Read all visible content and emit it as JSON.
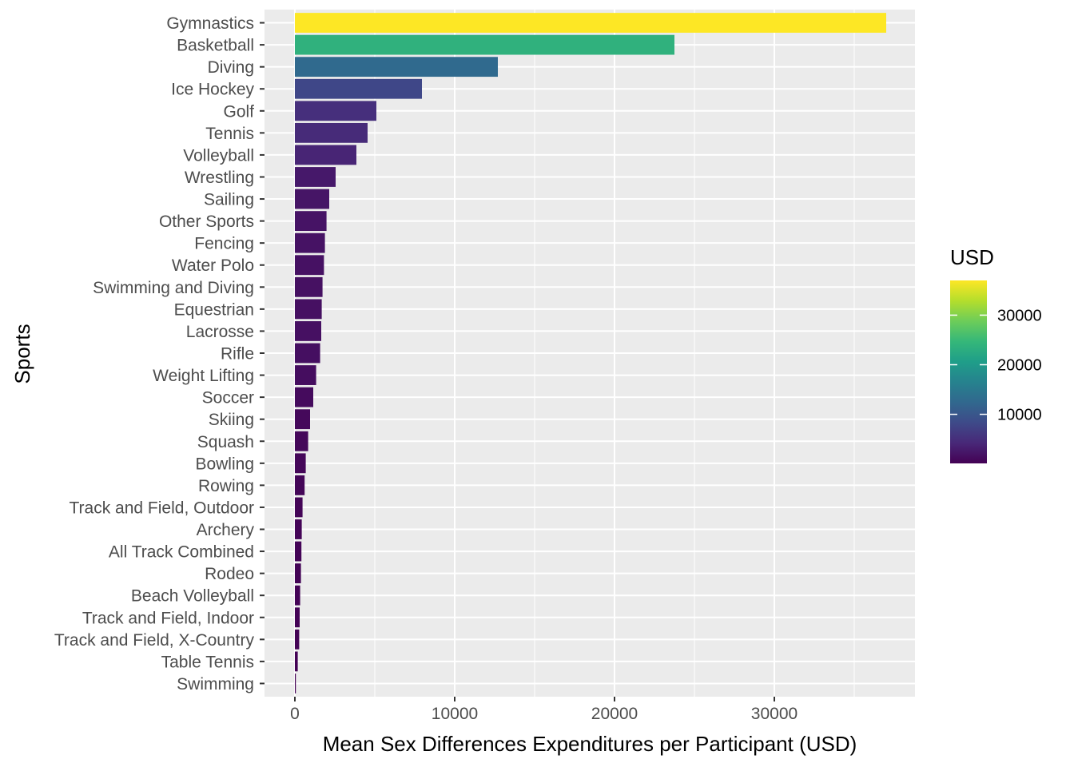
{
  "chart_data": {
    "type": "bar",
    "orientation": "horizontal",
    "xlabel": "Mean Sex Differences Expenditures per Participant (USD)",
    "ylabel": "Sports",
    "xlim": [
      -1900,
      38800
    ],
    "xticks": [
      0,
      10000,
      20000,
      30000
    ],
    "xtick_labels": [
      "0",
      "10000",
      "20000",
      "30000"
    ],
    "grid": true,
    "legend": {
      "title": "USD",
      "position": "right",
      "type": "colorbar",
      "palette": "viridis",
      "range": [
        100,
        37000
      ],
      "ticks": [
        10000,
        20000,
        30000
      ],
      "tick_labels": [
        "10000",
        "20000",
        "30000"
      ]
    },
    "categories": [
      "Gymnastics",
      "Basketball",
      "Diving",
      "Ice Hockey",
      "Golf",
      "Tennis",
      "Volleyball",
      "Wrestling",
      "Sailing",
      "Other Sports",
      "Fencing",
      "Water Polo",
      "Swimming and Diving",
      "Equestrian",
      "Lacrosse",
      "Rifle",
      "Weight Lifting",
      "Soccer",
      "Skiing",
      "Squash",
      "Bowling",
      "Rowing",
      "Track and Field, Outdoor",
      "Archery",
      "All Track Combined",
      "Rodeo",
      "Beach Volleyball",
      "Track and Field, Indoor",
      "Track and Field, X-Country",
      "Table Tennis",
      "Swimming"
    ],
    "values": [
      37000,
      23750,
      12700,
      7950,
      5100,
      4550,
      3850,
      2550,
      2150,
      1980,
      1880,
      1820,
      1730,
      1680,
      1650,
      1580,
      1330,
      1150,
      950,
      830,
      680,
      610,
      480,
      430,
      410,
      380,
      330,
      300,
      270,
      180,
      60
    ]
  }
}
